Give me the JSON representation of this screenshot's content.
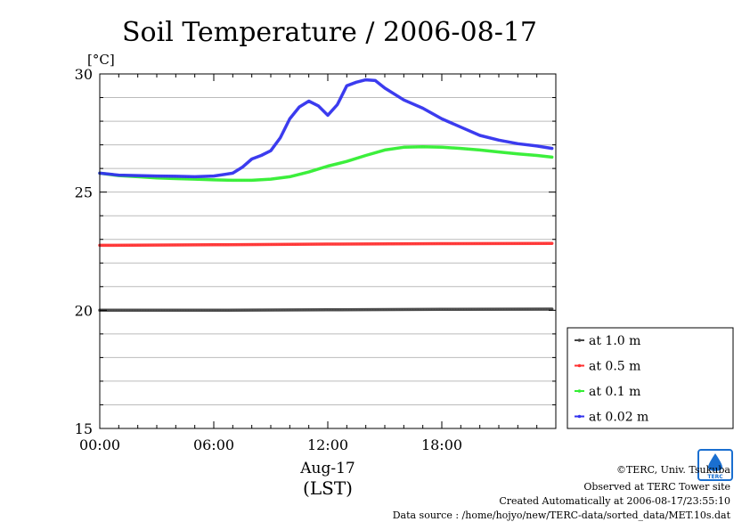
{
  "chart_data": {
    "type": "line",
    "title": "Soil Temperature / 2006-08-17",
    "ylabel": "[°C]",
    "xlabel_date": "Aug-17",
    "xlabel_unit": "(LST)",
    "xlim": [
      0,
      24
    ],
    "ylim": [
      15,
      30
    ],
    "y_ticks": [
      {
        "value": 15,
        "label": "15"
      },
      {
        "value": 20,
        "label": "20"
      },
      {
        "value": 25,
        "label": "25"
      },
      {
        "value": 30,
        "label": "30"
      }
    ],
    "x_ticks": [
      {
        "value": 0,
        "label": "00:00"
      },
      {
        "value": 6,
        "label": "06:00"
      },
      {
        "value": 12,
        "label": "12:00"
      },
      {
        "value": 18,
        "label": "18:00"
      }
    ],
    "grid": true,
    "legend_position": "right-bottom",
    "series": [
      {
        "name": "at 1.0 m",
        "color": "#444444",
        "x": [
          0,
          6,
          12,
          18,
          23.8
        ],
        "y": [
          20.0,
          20.0,
          20.02,
          20.04,
          20.05
        ]
      },
      {
        "name": "at 0.5 m",
        "color": "#ff3030",
        "x": [
          0,
          6,
          12,
          18,
          23.8
        ],
        "y": [
          22.75,
          22.77,
          22.8,
          22.82,
          22.83
        ]
      },
      {
        "name": "at 0.1 m",
        "color": "#33ee33",
        "x": [
          0,
          1,
          2,
          3,
          4,
          5,
          6,
          7,
          8,
          9,
          10,
          11,
          12,
          13,
          14,
          15,
          16,
          17,
          18,
          19,
          20,
          21,
          22,
          23,
          23.8
        ],
        "y": [
          25.8,
          25.7,
          25.65,
          25.6,
          25.57,
          25.55,
          25.52,
          25.5,
          25.5,
          25.55,
          25.65,
          25.85,
          26.1,
          26.3,
          26.55,
          26.78,
          26.9,
          26.92,
          26.9,
          26.85,
          26.78,
          26.7,
          26.62,
          26.55,
          26.48
        ]
      },
      {
        "name": "at 0.02 m",
        "color": "#3333ee",
        "x": [
          0,
          1,
          2,
          3,
          4,
          5,
          6,
          7,
          7.5,
          8,
          8.5,
          9,
          9.5,
          10,
          10.5,
          11,
          11.5,
          12,
          12.5,
          13,
          13.5,
          14,
          14.5,
          15,
          16,
          17,
          18,
          19,
          20,
          21,
          22,
          23,
          23.8
        ],
        "y": [
          25.8,
          25.72,
          25.7,
          25.68,
          25.67,
          25.65,
          25.68,
          25.8,
          26.05,
          26.4,
          26.55,
          26.75,
          27.3,
          28.1,
          28.6,
          28.85,
          28.65,
          28.25,
          28.7,
          29.5,
          29.65,
          29.75,
          29.72,
          29.4,
          28.9,
          28.55,
          28.1,
          27.75,
          27.4,
          27.2,
          27.05,
          26.95,
          26.85
        ]
      }
    ]
  },
  "credits": {
    "copyright": "©TERC, Univ. Tsukuba",
    "site": "Observed at TERC Tower site",
    "created": "Created Automatically at 2006-08-17/23:55:10",
    "source": "Data source : /home/hojyo/new/TERC-data/sorted_data/MET.10s.dat",
    "badge": "TERC"
  }
}
